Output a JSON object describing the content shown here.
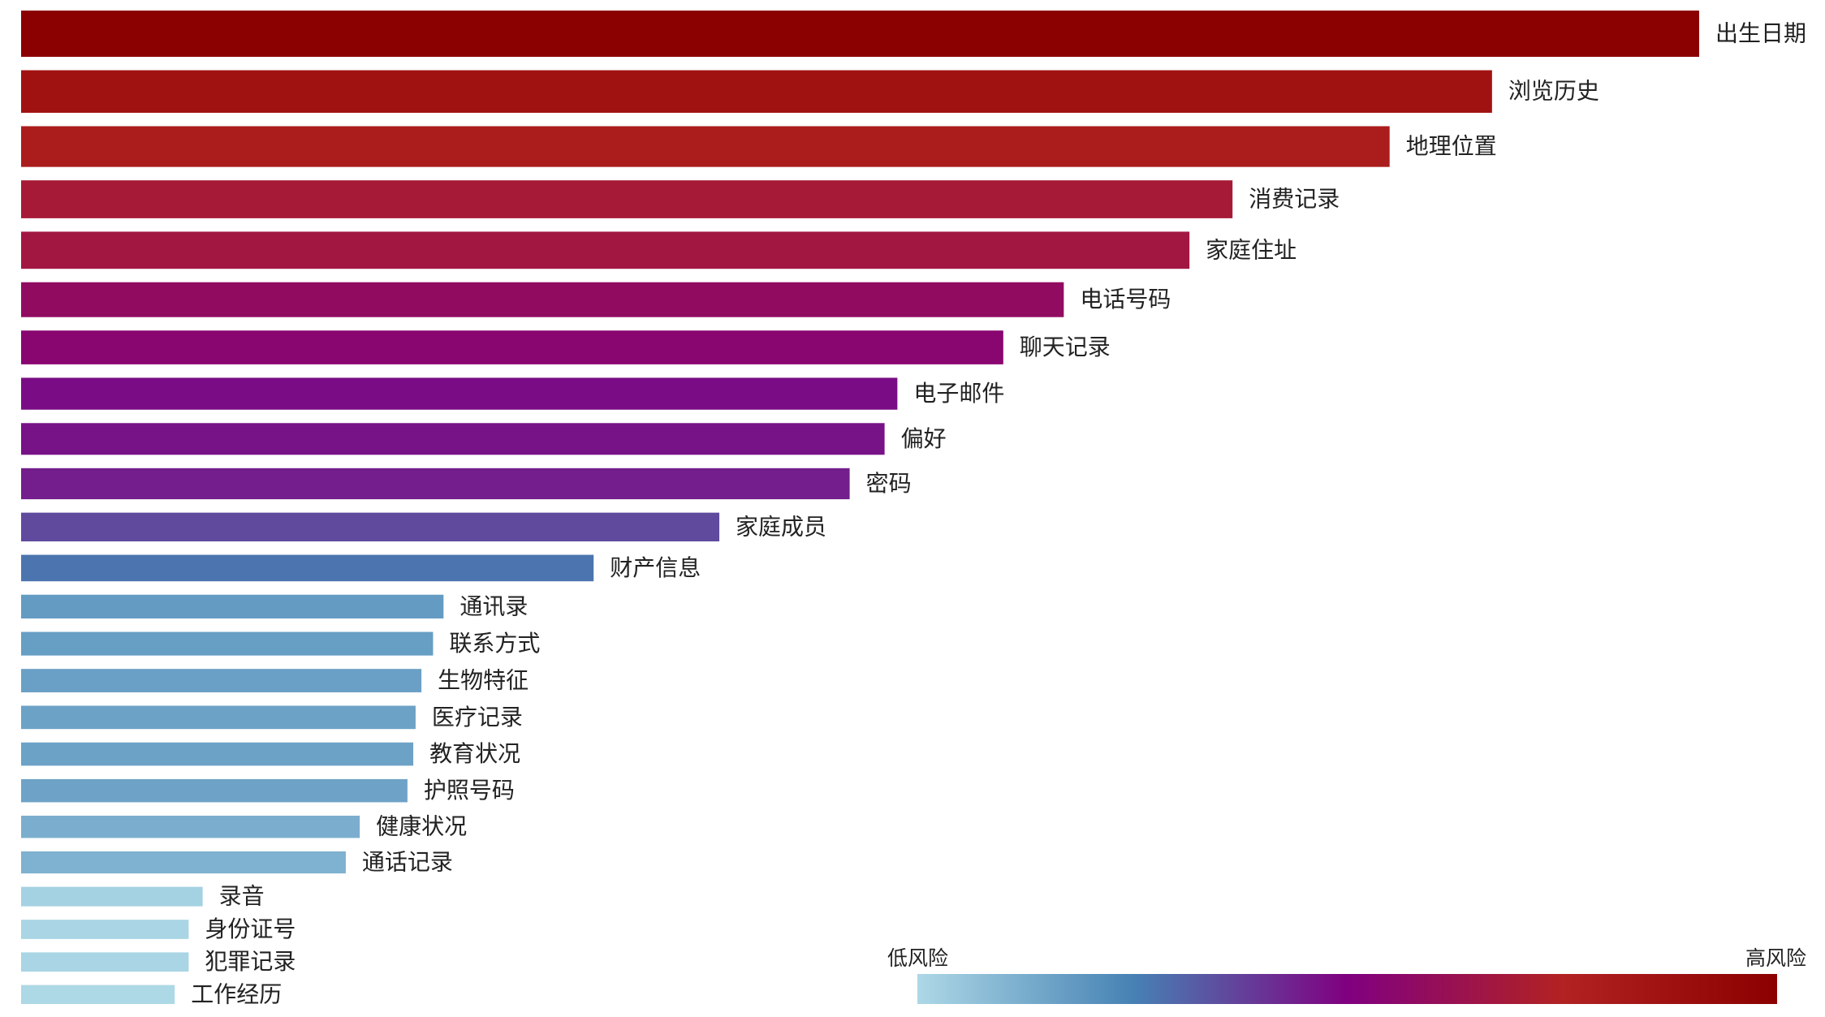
{
  "chart_data": {
    "type": "barh",
    "categories": [
      "出生日期",
      "浏览历史",
      "地理位置",
      "消费记录",
      "家庭住址",
      "电话号码",
      "聊天记录",
      "电子邮件",
      "偏好",
      "密码",
      "家庭成员",
      "财产信息",
      "通讯录",
      "联系方式",
      "生物特征",
      "医疗记录",
      "教育状况",
      "护照号码",
      "健康状况",
      "通话记录",
      "录音",
      "身份证号",
      "犯罪记录",
      "工作经历"
    ],
    "values": [
      1442,
      1264,
      1176,
      1041,
      1004,
      896,
      844,
      753,
      742,
      712,
      600,
      492,
      363,
      354,
      344,
      339,
      337,
      332,
      291,
      279,
      156,
      144,
      144,
      132
    ],
    "colormap": [
      "#add8e6",
      "#4682b4",
      "#800080",
      "#b22222",
      "#8b0000"
    ],
    "colorbar_labels": [
      "低风险",
      "高风险"
    ]
  }
}
